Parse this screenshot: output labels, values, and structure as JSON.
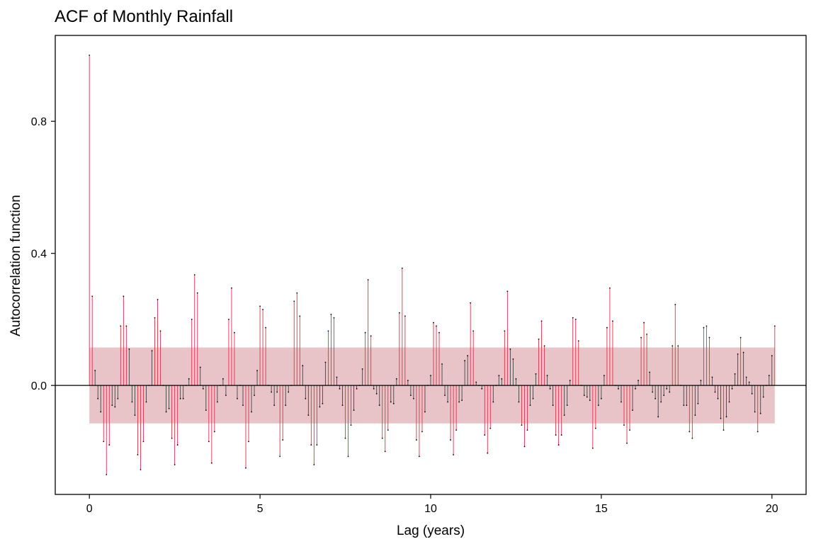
{
  "chart_data": {
    "type": "acf",
    "title": "ACF of Monthly Rainfall",
    "xlabel": "Lag (years)",
    "ylabel": "Autocorrelation function",
    "xlim": [
      -1,
      21
    ],
    "ylim": [
      -0.33,
      1.06
    ],
    "xticks": [
      0,
      5,
      10,
      15,
      20
    ],
    "xtick_labels": [
      "0",
      "5",
      "10",
      "15",
      "20"
    ],
    "yticks": [
      0.0,
      0.4,
      0.8
    ],
    "ytick_labels": [
      "0.0",
      "0.4",
      "0.8"
    ],
    "confidence_band": [
      -0.115,
      0.115
    ],
    "lag_step": 0.08333,
    "significant_color": "#e0314a",
    "nonsignificant_color": "#444444",
    "band_color": "#e8c4c9",
    "values": [
      1.0,
      0.27,
      0.045,
      -0.04,
      -0.08,
      -0.17,
      -0.27,
      -0.18,
      -0.06,
      -0.065,
      -0.04,
      0.18,
      0.27,
      0.18,
      0.11,
      -0.05,
      -0.09,
      -0.21,
      -0.255,
      -0.17,
      -0.05,
      0.0,
      0.105,
      0.205,
      0.26,
      0.165,
      0.0,
      -0.08,
      -0.07,
      -0.16,
      -0.24,
      -0.18,
      -0.04,
      -0.04,
      0.0,
      0.02,
      0.2,
      0.335,
      0.28,
      0.055,
      -0.01,
      -0.075,
      -0.17,
      -0.235,
      -0.14,
      -0.05,
      0.0,
      0.02,
      -0.03,
      0.2,
      0.295,
      0.16,
      -0.04,
      0.0,
      -0.06,
      -0.25,
      -0.17,
      -0.08,
      -0.03,
      0.045,
      0.24,
      0.23,
      0.175,
      0.0,
      -0.02,
      -0.06,
      -0.02,
      -0.215,
      -0.165,
      -0.06,
      -0.02,
      0.0,
      0.255,
      0.28,
      0.21,
      0.06,
      -0.04,
      -0.09,
      -0.18,
      -0.24,
      -0.18,
      -0.065,
      -0.055,
      0.07,
      0.165,
      0.215,
      0.205,
      0.025,
      -0.01,
      -0.06,
      -0.16,
      -0.215,
      -0.12,
      -0.075,
      -0.01,
      0.0,
      0.05,
      0.16,
      0.32,
      0.15,
      -0.01,
      -0.025,
      -0.06,
      -0.16,
      -0.2,
      -0.135,
      -0.05,
      -0.055,
      0.02,
      0.22,
      0.355,
      0.21,
      0.015,
      -0.03,
      -0.04,
      -0.165,
      -0.215,
      -0.14,
      -0.08,
      0.0,
      0.03,
      0.19,
      0.18,
      0.16,
      0.065,
      -0.03,
      -0.05,
      -0.165,
      -0.21,
      -0.135,
      -0.05,
      -0.045,
      0.075,
      0.09,
      0.25,
      0.165,
      0.01,
      0.0,
      -0.01,
      -0.15,
      -0.205,
      -0.13,
      -0.05,
      0.0,
      0.03,
      0.02,
      0.165,
      0.285,
      0.11,
      0.08,
      0.02,
      -0.05,
      -0.12,
      -0.185,
      -0.135,
      -0.06,
      -0.04,
      0.035,
      0.14,
      0.195,
      0.12,
      0.03,
      -0.01,
      -0.06,
      -0.15,
      -0.18,
      -0.15,
      -0.09,
      -0.06,
      0.015,
      0.205,
      0.2,
      0.135,
      0.0,
      -0.03,
      -0.035,
      -0.045,
      -0.19,
      -0.13,
      -0.06,
      -0.04,
      0.03,
      0.175,
      0.295,
      0.195,
      0.0,
      -0.01,
      -0.05,
      -0.12,
      -0.175,
      -0.135,
      -0.075,
      -0.01,
      0.015,
      0.145,
      0.19,
      0.155,
      0.04,
      -0.02,
      -0.04,
      -0.095,
      -0.05,
      -0.03,
      -0.01,
      -0.02,
      0.12,
      0.245,
      0.12,
      0.0,
      -0.06,
      -0.06,
      -0.14,
      -0.16,
      -0.09,
      -0.055,
      0.015,
      0.175,
      0.18,
      0.145,
      0.025,
      -0.02,
      -0.04,
      -0.1,
      -0.135,
      -0.095,
      -0.05,
      -0.01,
      0.035,
      0.095,
      0.145,
      0.1,
      0.025,
      0.01,
      -0.025,
      -0.08,
      -0.14,
      -0.085,
      -0.035,
      0.0,
      0.03,
      0.09,
      0.18
    ]
  }
}
